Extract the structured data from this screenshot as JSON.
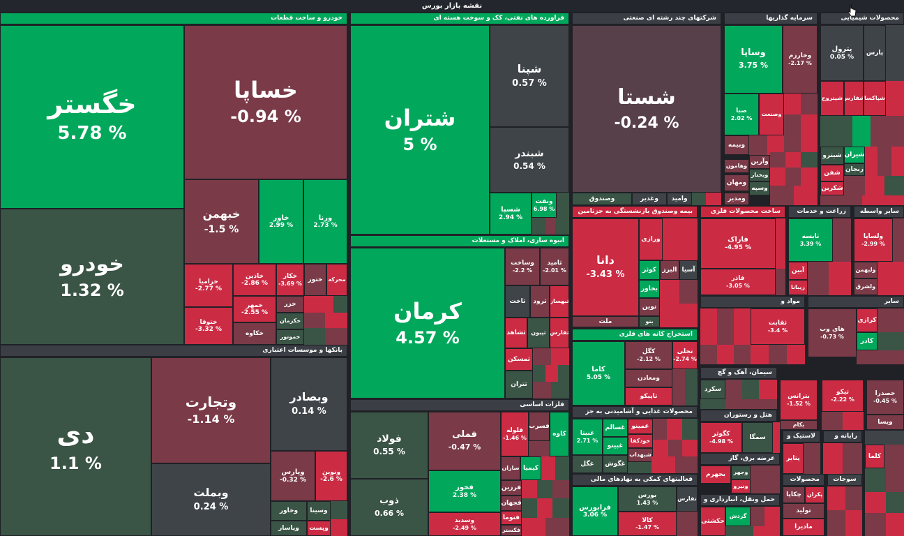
{
  "title": "نقشه بازار بورس",
  "colors": {
    "strong_green": "#01a85c",
    "dark_green": "#3a5445",
    "strong_red": "#cc2b44",
    "dark_red": "#7a3a47",
    "neutral": "#3f4448"
  },
  "sectors": {
    "auto": "خودرو و ساخت قطعات",
    "banks": "بانکها و موسسات اعتباری",
    "refinery": "فراورده های نفتی، کک و سوخت هسته ای",
    "construction": "انبوه سازی، املاک و مستغلات",
    "basic_metals": "فلزات اساسی",
    "multi": "شرکتهای چند رشته ای صنعتی",
    "investment": "سرمایه گذاریها",
    "chemicals": "محصولات شیمیایی",
    "insurance": "بیمه وصندوق بازنشستگی به جزتامین",
    "metal_products": "ساخت محصولات فلزی",
    "agriculture": "زراعت و خدمات",
    "other_brokers": "سایر واسطه",
    "metal_ores": "استخراج کانه های فلزی",
    "chem_materials": "مواد و",
    "other": "سایر",
    "cement": "سیمان، آهک و گچ",
    "hotels": "هتل و رستوران",
    "food": "محصولات غذایی و آشامیدنی به جز",
    "utilities": "عرضه برق، گاز",
    "financial": "فعالیتهای کمکی به نهادهای مالی",
    "transport": "حمل ونقل، انبارداری و",
    "rubber": "لاستیک و",
    "computer": "رایانه و",
    "pharma": "محصولات"
  },
  "tiles": {
    "khgostar": {
      "s": "خگستر",
      "p": "5.78 %"
    },
    "khsapa": {
      "s": "خساپا",
      "p": "-0.94 %"
    },
    "khodro": {
      "s": "خودرو",
      "p": "1.32 %"
    },
    "khbahman": {
      "s": "خبهمن",
      "p": "-1.5 %"
    },
    "khavar": {
      "s": "خاور",
      "p": "2.99 %"
    },
    "vorna": {
      "s": "ورنا",
      "p": "2.73 %"
    },
    "khazamia": {
      "s": "خزامیا",
      "p": "-2.77 %"
    },
    "khadin": {
      "s": "خاذین",
      "p": "-2.86 %"
    },
    "khkar": {
      "s": "خکار",
      "p": "-3.69 %"
    },
    "khtoor": {
      "s": "ختور"
    },
    "mehrke": {
      "s": "محرکه"
    },
    "khtoga": {
      "s": "ختوقا",
      "p": "-3.32 %"
    },
    "khamehr": {
      "s": "خمهر",
      "p": "-2.55 %"
    },
    "khzar": {
      "s": "خزر"
    },
    "khkarman": {
      "s": "خکرمان"
    },
    "khkave": {
      "s": "خکاوه"
    },
    "khamotor": {
      "s": "خموتور"
    },
    "di": {
      "s": "دی",
      "p": "1.1 %"
    },
    "vtejarat": {
      "s": "وتجارت",
      "p": "-1.14 %"
    },
    "vbsader": {
      "s": "وبصادر",
      "p": "0.14 %"
    },
    "vbmellat": {
      "s": "وبملت",
      "p": "0.24 %"
    },
    "vparis": {
      "s": "وپارس",
      "p": "-0.32 %"
    },
    "vnovin": {
      "s": "ونوین",
      "p": "-2.6 %"
    },
    "vkhavar": {
      "s": "وخاور"
    },
    "vsina": {
      "s": "وسینا"
    },
    "vpasar": {
      "s": "وپاسار"
    },
    "vpost": {
      "s": "وپست"
    },
    "shetran": {
      "s": "شتران",
      "p": "5 %"
    },
    "shepna": {
      "s": "شپنا",
      "p": "0.57 %"
    },
    "shebandar": {
      "s": "شبندر",
      "p": "0.54 %"
    },
    "shesapa": {
      "s": "شسپا",
      "p": "2.94 %"
    },
    "vnaft": {
      "s": "ونفت",
      "p": "6.98 %"
    },
    "kerman": {
      "s": "کرمان",
      "p": "4.57 %"
    },
    "vsakht": {
      "s": "وساخت",
      "p": "-2.2 %"
    },
    "tamid": {
      "s": "ثامید",
      "p": "-2.01 %"
    },
    "sakhat": {
      "s": "ثاخت"
    },
    "garud": {
      "s": "ثرود"
    },
    "behsaz": {
      "s": "ثبهساز"
    },
    "shahed": {
      "s": "ثشاهد"
    },
    "sepun": {
      "s": "ثپیون"
    },
    "tfars": {
      "s": "ثفارس"
    },
    "tmaskan": {
      "s": "ثمسکن"
    },
    "tehran": {
      "s": "ثتران"
    },
    "foolad": {
      "s": "فولاد",
      "p": "0.55 %"
    },
    "femeli": {
      "s": "فملی",
      "p": "-0.47 %"
    },
    "folaj": {
      "s": "فلوله",
      "p": "-1.46 %"
    },
    "fesorb": {
      "s": "فسرب"
    },
    "kave": {
      "s": "کاوه"
    },
    "kimia": {
      "s": "کیمیا"
    },
    "sazin": {
      "s": "سازان"
    },
    "fakhooz": {
      "s": "فخوز",
      "p": "2.38 %"
    },
    "zob": {
      "s": "ذوب",
      "p": "0.66 %"
    },
    "farzin": {
      "s": "فرزین"
    },
    "fjahan": {
      "s": "فجهان"
    },
    "fottoma": {
      "s": "فنوما"
    },
    "fkastar": {
      "s": "فکستر"
    },
    "vsadid": {
      "s": "وسدید",
      "p": "-2.49 %"
    },
    "shesta": {
      "s": "شستا",
      "p": "-0.24 %"
    },
    "vsandogh": {
      "s": "وصندوق"
    },
    "vghadir": {
      "s": "وغدیر"
    },
    "vamid": {
      "s": "وامید"
    },
    "vsapa": {
      "s": "وساپا",
      "p": "3.75 %"
    },
    "vkharazm": {
      "s": "وخارزم",
      "p": "-2.17 %"
    },
    "saba": {
      "s": "صبا",
      "p": "2.02 %"
    },
    "vsanat": {
      "s": "وصنعت"
    },
    "vbime": {
      "s": "وبیمه"
    },
    "vaarin": {
      "s": "وآرین"
    },
    "vhamoon": {
      "s": "وهامون"
    },
    "vbakhtar": {
      "s": "وبختار"
    },
    "vmehan": {
      "s": "ومهان"
    },
    "vsepah": {
      "s": "وسپه"
    },
    "vmodir": {
      "s": "ومدیر"
    },
    "petrol": {
      "s": "پترول",
      "p": "0.05 %"
    },
    "pars": {
      "s": "پارس"
    },
    "shpaksa": {
      "s": "شپاکسا"
    },
    "shfars": {
      "s": "شفارس"
    },
    "shpatroch": {
      "s": "شپتروح"
    },
    "shiran": {
      "s": "شیران"
    },
    "shetro": {
      "s": "شیترو"
    },
    "zanjan": {
      "s": "زنجان"
    },
    "shafan": {
      "s": "شفن"
    },
    "shekarin": {
      "s": "شکربن"
    },
    "dana": {
      "s": "دانا",
      "p": "-3.43 %"
    },
    "vrazi": {
      "s": "ورازی"
    },
    "asia": {
      "s": "آسیا"
    },
    "alborz": {
      "s": "البرز"
    },
    "kowsar": {
      "s": "کوثر"
    },
    "bkhavar": {
      "s": "بخاور"
    },
    "novin": {
      "s": "نوین"
    },
    "bano": {
      "s": "بنو"
    },
    "mellat": {
      "s": "ملت"
    },
    "farak": {
      "s": "فاراک",
      "p": "-4.95 %"
    },
    "fagher": {
      "s": "فاذر",
      "p": "-3.05 %"
    },
    "taise": {
      "s": "تایسه",
      "p": "3.39 %"
    },
    "abin": {
      "s": "آبین"
    },
    "zibana": {
      "s": "زیبانا"
    },
    "velsapa": {
      "s": "ولساپا",
      "p": "-2.99 %"
    },
    "velbahman": {
      "s": "ولبهمن"
    },
    "velshrgh": {
      "s": "ولشرق"
    },
    "kama": {
      "s": "کاما",
      "p": "5.05 %"
    },
    "kagol": {
      "s": "کگل",
      "p": "-2.12 %"
    },
    "tajali": {
      "s": "تجلی",
      "p": "-2.74 %"
    },
    "vmaadan": {
      "s": "ومعادن"
    },
    "tapikov": {
      "s": "تاپیکو"
    },
    "tghatab": {
      "s": "ثقابت",
      "p": "-3.4 %"
    },
    "haiweb": {
      "s": "های وب",
      "p": "-0.73 %"
    },
    "karazi": {
      "s": "کرازی"
    },
    "kader": {
      "s": "کادر"
    },
    "sekord": {
      "s": "سکرد"
    },
    "betrans": {
      "s": "بترانس",
      "p": "-1.52 %"
    },
    "tikoo": {
      "s": "تیکو",
      "p": "-2.22 %"
    },
    "khasdara": {
      "s": "خصدرا",
      "p": "-0.45 %"
    },
    "bekam": {
      "s": "بکام"
    },
    "visa": {
      "s": "ویسا"
    },
    "kgowsar": {
      "s": "کگوثر",
      "p": "-4.98 %"
    },
    "sema": {
      "s": "سمگا"
    },
    "patir": {
      "s": "پتایر"
    },
    "kelma": {
      "s": "کلما"
    },
    "ghnita": {
      "s": "غنیتا",
      "p": "2.71 %"
    },
    "ghsalam": {
      "s": "غسالم"
    },
    "ghminoo": {
      "s": "غمینو"
    },
    "khodkafa": {
      "s": "خودکفا"
    },
    "ghbina": {
      "s": "غبینو"
    },
    "shbahdar": {
      "s": "شبهداب"
    },
    "ghgal": {
      "s": "غگل"
    },
    "ghkosh": {
      "s": "غگوش"
    },
    "faraboors": {
      "s": "فرابورس",
      "p": "3.06 %"
    },
    "boors": {
      "s": "بورس",
      "p": "1.43 %"
    },
    "tfars2": {
      "s": "تفارس"
    },
    "kala": {
      "s": "کالا",
      "p": "-1.47 %"
    },
    "bjahrom": {
      "s": "بجهرم"
    },
    "vtejahr": {
      "s": "وجهر"
    },
    "bnira": {
      "s": "ونیرو"
    },
    "hkshti": {
      "s": "حکشتی"
    },
    "gardesh": {
      "s": "گردش"
    },
    "chakapa": {
      "s": "چکاپا"
    },
    "paksan": {
      "s": "پکران"
    },
    "tolid": {
      "s": "تولید"
    },
    "madira": {
      "s": "مادیرا"
    },
    "sojat": {
      "s": "سوجات"
    }
  }
}
